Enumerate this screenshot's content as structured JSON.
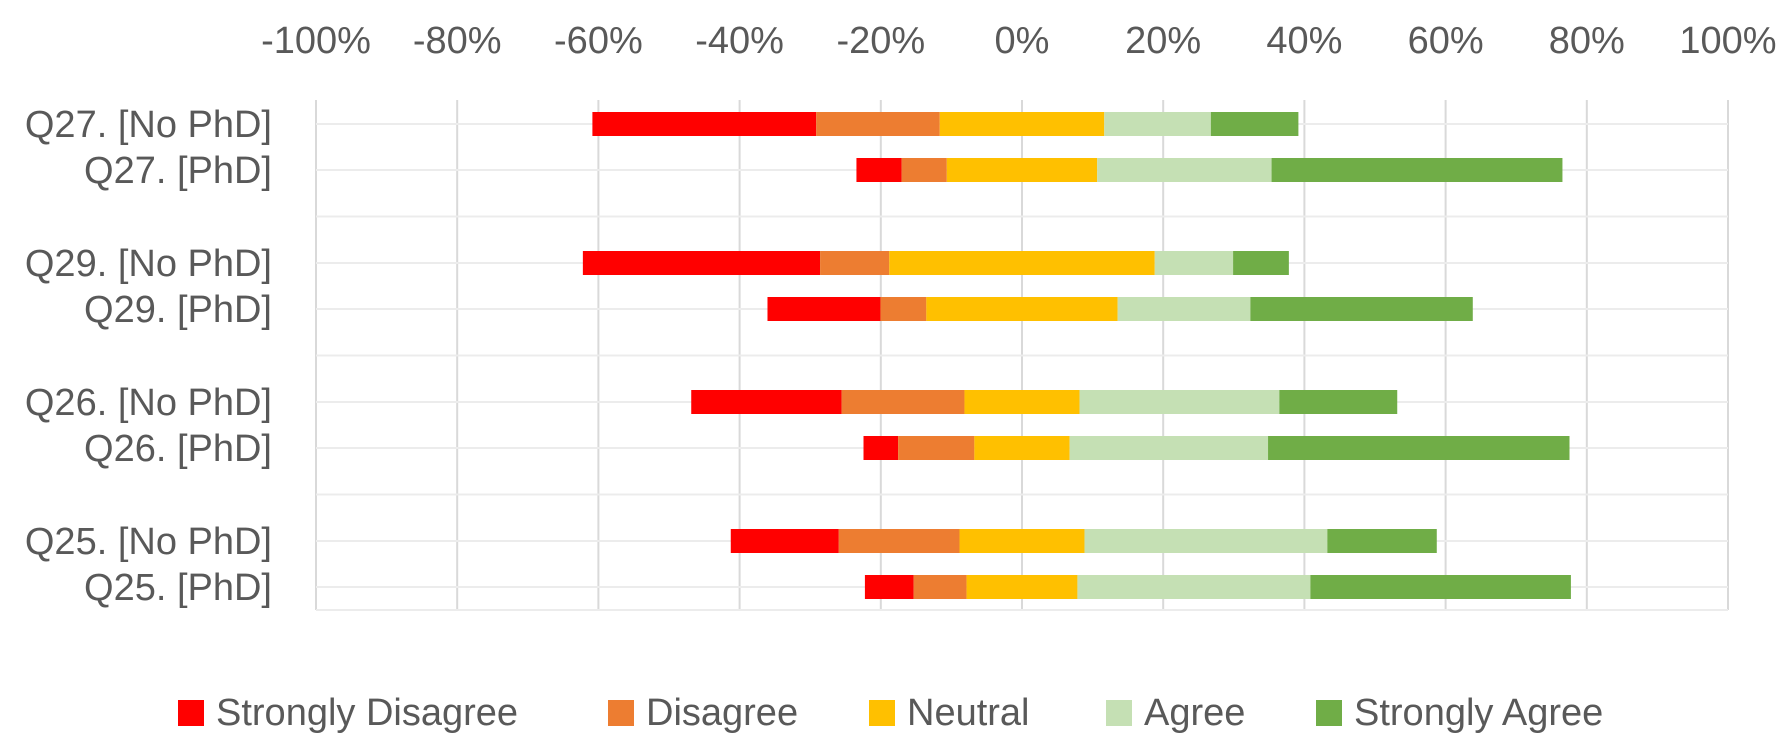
{
  "chart_data": {
    "type": "bar",
    "orientation": "horizontal",
    "stacked": "diverging",
    "title": "",
    "xlabel": "",
    "ylabel": "",
    "xlim": [
      -100,
      100
    ],
    "x_ticks": [
      -100,
      -80,
      -60,
      -40,
      -20,
      0,
      20,
      40,
      60,
      80,
      100
    ],
    "x_tick_labels": [
      "-100%",
      "-80%",
      "-60%",
      "-40%",
      "-20%",
      "0%",
      "20%",
      "40%",
      "60%",
      "80%",
      "100%"
    ],
    "grid": true,
    "legend_position": "bottom",
    "categories": [
      "Q27. [No PhD]",
      "Q27. [PhD]",
      "Q29. [No PhD]",
      "Q29. [PhD]",
      "Q26. [No PhD]",
      "Q26. [PhD]",
      "Q25. [No PhD]",
      "Q25. [PhD]"
    ],
    "groups": [
      [
        "Q27. [No PhD]",
        "Q27. [PhD]"
      ],
      [
        "Q29. [No PhD]",
        "Q29. [PhD]"
      ],
      [
        "Q26. [No PhD]",
        "Q26. [PhD]"
      ],
      [
        "Q25. [No PhD]",
        "Q25. [PhD]"
      ]
    ],
    "series": [
      {
        "name": "Strongly Disagree",
        "color": "#ff0000",
        "values": [
          31.7,
          6.4,
          33.6,
          16.0,
          21.3,
          4.9,
          15.3,
          6.9
        ]
      },
      {
        "name": "Disagree",
        "color": "#ed7d31",
        "values": [
          17.5,
          6.4,
          9.8,
          6.5,
          17.4,
          10.8,
          17.1,
          7.5
        ]
      },
      {
        "name": "Neutral",
        "color": "#ffc000",
        "values": [
          23.3,
          21.3,
          37.6,
          27.1,
          16.3,
          13.5,
          17.7,
          15.7
        ]
      },
      {
        "name": "Agree",
        "color": "#c5e0b4",
        "values": [
          15.1,
          24.7,
          11.1,
          18.8,
          28.3,
          28.1,
          34.4,
          33.0
        ]
      },
      {
        "name": "Strongly Agree",
        "color": "#70ad47",
        "values": [
          12.4,
          41.2,
          7.9,
          31.5,
          16.7,
          42.7,
          15.5,
          36.9
        ]
      }
    ]
  }
}
